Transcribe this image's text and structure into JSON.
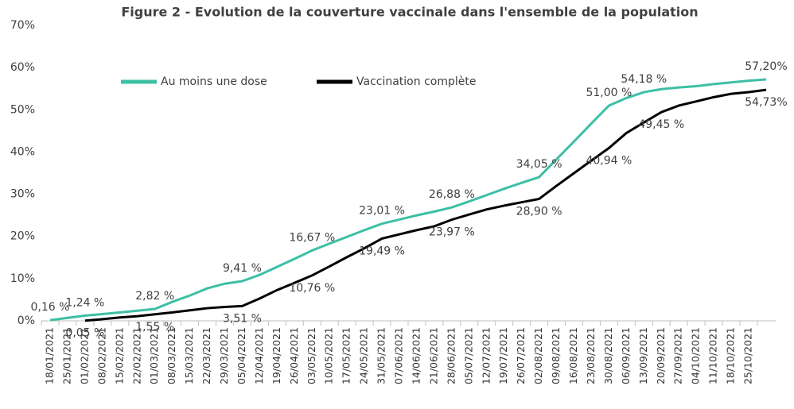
{
  "chart_data": {
    "type": "line",
    "title": "Figure 2 - Evolution de la couverture vaccinale dans l'ensemble de la population",
    "categories": [
      "18/01/2021",
      "25/01/2021",
      "01/02/2021",
      "08/02/2021",
      "15/02/2021",
      "22/02/2021",
      "01/03/2021",
      "08/03/2021",
      "15/03/2021",
      "22/03/2021",
      "29/03/2021",
      "05/04/2021",
      "12/04/2021",
      "19/04/2021",
      "26/04/2021",
      "03/05/2021",
      "10/05/2021",
      "17/05/2021",
      "24/05/2021",
      "31/05/2021",
      "07/06/2021",
      "14/06/2021",
      "21/06/2021",
      "28/06/2021",
      "05/07/2021",
      "12/07/2021",
      "19/07/2021",
      "26/07/2021",
      "02/08/2021",
      "09/08/2021",
      "16/08/2021",
      "23/08/2021",
      "30/08/2021",
      "06/09/2021",
      "13/09/2021",
      "20/09/2021",
      "27/09/2021",
      "04/10/2021",
      "11/10/2021",
      "18/10/2021",
      "25/10/2021",
      null
    ],
    "series": [
      {
        "name": "Au moins une dose",
        "color": "#3dbfa4",
        "values": [
          0.16,
          0.7,
          1.24,
          1.6,
          2.0,
          2.4,
          2.82,
          4.5,
          6.0,
          7.7,
          8.8,
          9.41,
          10.9,
          12.8,
          14.7,
          16.67,
          18.3,
          19.9,
          21.5,
          23.01,
          24.0,
          25.0,
          25.9,
          26.88,
          28.3,
          29.8,
          31.3,
          32.7,
          34.05,
          38.3,
          42.5,
          46.8,
          51.0,
          52.8,
          54.18,
          54.9,
          55.3,
          55.6,
          56.1,
          56.5,
          56.9,
          57.2
        ],
        "value_labels": [
          "0,16 %",
          null,
          "1,24 %",
          null,
          null,
          null,
          "2,82 %",
          null,
          null,
          null,
          null,
          "9,41 %",
          null,
          null,
          null,
          "16,67 %",
          null,
          null,
          null,
          "23,01 %",
          null,
          null,
          null,
          "26,88 %",
          null,
          null,
          null,
          null,
          "34,05 %",
          null,
          null,
          null,
          "51,00 %",
          null,
          "54,18 %",
          null,
          null,
          null,
          null,
          null,
          null,
          "57,20%"
        ]
      },
      {
        "name": "Vaccination complète",
        "color": "#000000",
        "values": [
          null,
          null,
          0.05,
          0.4,
          0.8,
          1.1,
          1.55,
          2.0,
          2.5,
          3.0,
          3.3,
          3.51,
          5.3,
          7.3,
          9.0,
          10.76,
          12.9,
          15.1,
          17.2,
          19.49,
          20.5,
          21.5,
          22.4,
          23.97,
          25.2,
          26.4,
          27.3,
          28.1,
          28.9,
          32.0,
          35.0,
          38.0,
          40.94,
          44.5,
          47.0,
          49.45,
          51.0,
          52.0,
          53.0,
          53.8,
          54.2,
          54.73
        ],
        "value_labels": [
          null,
          null,
          "0,05 %",
          null,
          null,
          null,
          "1,55 %",
          null,
          null,
          null,
          null,
          "3,51 %",
          null,
          null,
          null,
          "10,76 %",
          null,
          null,
          null,
          "19,49 %",
          null,
          null,
          null,
          "23,97 %",
          null,
          null,
          null,
          null,
          "28,90 %",
          null,
          null,
          null,
          "40,94 %",
          null,
          null,
          "49,45 %",
          null,
          null,
          null,
          null,
          null,
          "54,73%"
        ]
      }
    ],
    "ylim": [
      0,
      70
    ],
    "yticks": [
      {
        "value": 0,
        "label": "0%"
      },
      {
        "value": 10,
        "label": "10%"
      },
      {
        "value": 20,
        "label": "20%"
      },
      {
        "value": 30,
        "label": "30%"
      },
      {
        "value": 40,
        "label": "40%"
      },
      {
        "value": 50,
        "label": "50%"
      },
      {
        "value": 60,
        "label": "60%"
      },
      {
        "value": 70,
        "label": "70%"
      }
    ],
    "grid": false
  }
}
